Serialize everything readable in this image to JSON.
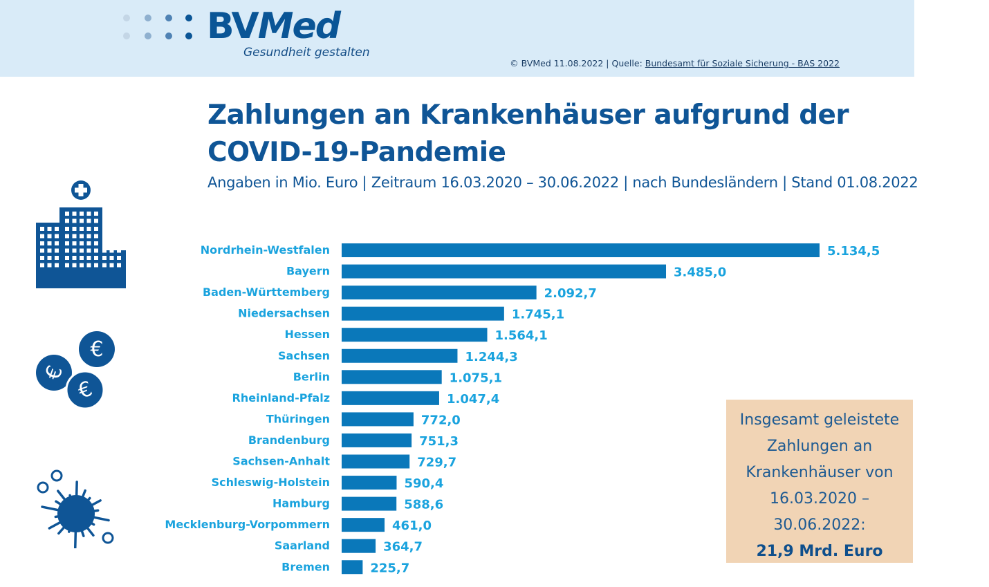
{
  "header": {
    "logo_text_bv": "BV",
    "logo_text_med": "Med",
    "logo_tagline": "Gesundheit gestalten",
    "source_prefix": "© BVMed 11.08.2022 | Quelle: ",
    "source_link": "Bundesamt für Soziale Sicherung - BAS 2022"
  },
  "colors": {
    "header_bg": "#d9ebf8",
    "brand_blue": "#0f5596",
    "bar_blue": "#0a78ba",
    "label_cyan": "#1aa3de",
    "total_box_bg": "#f1d4b5"
  },
  "icons": {
    "hospital": "hospital-building-icon",
    "coins": "euro-coins-icon",
    "virus": "virus-icon"
  },
  "total_box": {
    "lines": [
      "Insgesamt geleistete",
      "Zahlungen an",
      "Krankenhäuser von",
      "16.03.2020 –",
      "30.06.2022:"
    ],
    "value": "21,9 Mrd. Euro"
  },
  "chart_data": {
    "type": "bar",
    "orientation": "horizontal",
    "title": "Zahlungen an Krankenhäuser aufgrund der COVID-19-Pandemie",
    "subtitle": "Angaben in Mio. Euro | Zeitraum 16.03.2020 – 30.06.2022 | nach Bundesländern | Stand 01.08.2022",
    "xlabel": "",
    "ylabel": "",
    "unit": "Mio. Euro",
    "grid": false,
    "legend": "none",
    "xlim": [
      0,
      5134.5
    ],
    "categories": [
      "Nordrhein-Westfalen",
      "Bayern",
      "Baden-Württemberg",
      "Niedersachsen",
      "Hessen",
      "Sachsen",
      "Berlin",
      "Rheinland-Pfalz",
      "Thüringen",
      "Brandenburg",
      "Sachsen-Anhalt",
      "Schleswig-Holstein",
      "Hamburg",
      "Mecklenburg-Vorpommern",
      "Saarland",
      "Bremen"
    ],
    "values": [
      5134.5,
      3485.0,
      2092.7,
      1745.1,
      1564.1,
      1244.3,
      1075.1,
      1047.4,
      772.0,
      751.3,
      729.7,
      590.4,
      588.6,
      461.0,
      364.7,
      225.7
    ],
    "value_labels": [
      "5.134,5",
      "3.485,0",
      "2.092,7",
      "1.745,1",
      "1.564,1",
      "1.244,3",
      "1.075,1",
      "1.047,4",
      "772,0",
      "751,3",
      "729,7",
      "590,4",
      "588,6",
      "461,0",
      "364,7",
      "225,7"
    ]
  }
}
